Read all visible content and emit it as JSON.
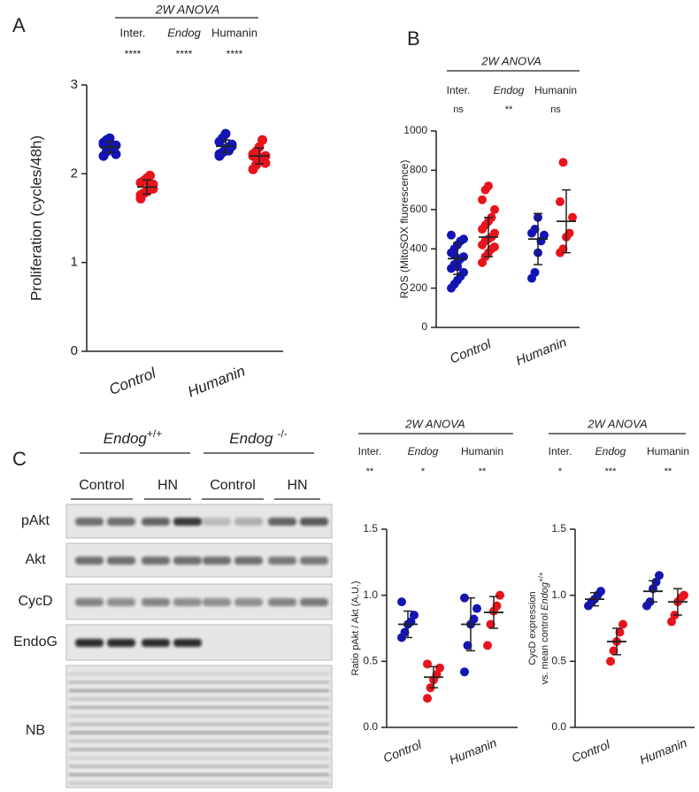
{
  "chart_data": [
    {
      "type": "dot",
      "panel_label": "A",
      "anova": {
        "title": "2W ANOVA",
        "terms": [
          "Inter.",
          "Endog",
          "Humanin"
        ],
        "significance": [
          "****",
          "****",
          "****"
        ]
      },
      "ylabel": "Proliferation (cycles/48h)",
      "categories": [
        "Control",
        "Humanin"
      ],
      "ylim": [
        0,
        3
      ],
      "yticks": [
        0,
        1,
        2,
        3
      ],
      "series": [
        {
          "color": "#1414b4",
          "points": [
            [
              2.2,
              2.25,
              2.28,
              2.3,
              2.32,
              2.35,
              2.38,
              2.4,
              2.27,
              2.22,
              2.33
            ],
            [
              2.2,
              2.24,
              2.28,
              2.3,
              2.33,
              2.36,
              2.4,
              2.45,
              2.26,
              2.31,
              2.22
            ]
          ],
          "mean": [
            2.3,
            2.31
          ],
          "sd": [
            0.06,
            0.07
          ]
        },
        {
          "color": "#e8141c",
          "points": [
            [
              1.72,
              1.78,
              1.8,
              1.85,
              1.88,
              1.9,
              1.92,
              1.95,
              1.98,
              1.83,
              1.76
            ],
            [
              2.05,
              2.1,
              2.15,
              2.18,
              2.2,
              2.22,
              2.25,
              2.3,
              2.38,
              2.12,
              2.2
            ]
          ],
          "mean": [
            1.85,
            2.2
          ],
          "sd": [
            0.08,
            0.09
          ]
        }
      ]
    },
    {
      "type": "dot",
      "panel_label": "B",
      "anova": {
        "title": "2W ANOVA",
        "terms": [
          "Inter.",
          "Endog",
          "Humanin"
        ],
        "significance": [
          "ns",
          "**",
          "ns"
        ]
      },
      "ylabel": "ROS (MitoSOX fluorescence)",
      "categories": [
        "Control",
        "Humanin"
      ],
      "ylim": [
        0,
        1000
      ],
      "yticks": [
        0,
        200,
        400,
        600,
        800,
        1000
      ],
      "series": [
        {
          "color": "#1414b4",
          "points": [
            [
              200,
              220,
              240,
              260,
              280,
              300,
              320,
              330,
              350,
              360,
              380,
              400,
              420,
              440,
              450,
              470,
              370,
              310
            ],
            [
              250,
              280,
              380,
              440,
              470,
              480,
              500,
              560
            ]
          ],
          "mean": [
            350,
            450
          ],
          "sd": [
            80,
            130
          ]
        },
        {
          "color": "#e8141c",
          "points": [
            [
              330,
              360,
              380,
              400,
              410,
              420,
              440,
              450,
              460,
              480,
              500,
              520,
              540,
              560,
              600,
              650,
              700,
              720
            ],
            [
              380,
              400,
              460,
              480,
              560,
              640,
              840
            ]
          ],
          "mean": [
            460,
            540
          ],
          "sd": [
            100,
            160
          ]
        }
      ]
    },
    {
      "type": "dot",
      "panel_label": "C",
      "anova": {
        "title": "2W ANOVA",
        "terms": [
          "Inter.",
          "Endog",
          "Humanin"
        ],
        "significance": [
          "**",
          "*",
          "**"
        ]
      },
      "ylabel": "Ratio pAkt / Akt (A.U.)",
      "categories": [
        "Control",
        "Humanin"
      ],
      "ylim": [
        0,
        1.5
      ],
      "yticks": [
        {
          "value": 0,
          "label": "0.0"
        },
        0.5,
        {
          "value": 1,
          "label": "1.0"
        },
        1.5
      ],
      "series": [
        {
          "color": "#1414b4",
          "points": [
            [
              0.68,
              0.72,
              0.78,
              0.8,
              0.85,
              0.95
            ],
            [
              0.42,
              0.62,
              0.78,
              0.82,
              0.9,
              0.98
            ]
          ],
          "mean": [
            0.78,
            0.78
          ],
          "sd": [
            0.1,
            0.2
          ]
        },
        {
          "color": "#e8141c",
          "points": [
            [
              0.22,
              0.3,
              0.36,
              0.4,
              0.45,
              0.48
            ],
            [
              0.62,
              0.78,
              0.88,
              0.92,
              1.0
            ]
          ],
          "mean": [
            0.38,
            0.87
          ],
          "sd": [
            0.08,
            0.12
          ]
        }
      ]
    },
    {
      "type": "dot",
      "anova": {
        "title": "2W ANOVA",
        "terms": [
          "Inter.",
          "Endog",
          "Humanin"
        ],
        "significance": [
          "*",
          "***",
          "**"
        ]
      },
      "ylabel": {
        "line1": "CycD expression",
        "line2": "vs. mean control",
        "gene": "Endog",
        "superscript": "+/+"
      },
      "categories": [
        "Control",
        "Humanin"
      ],
      "ylim": [
        0,
        1.5
      ],
      "yticks": [
        {
          "value": 0,
          "label": "0.0"
        },
        0.5,
        {
          "value": 1,
          "label": "1.0"
        },
        1.5
      ],
      "series": [
        {
          "color": "#1414b4",
          "points": [
            [
              0.92,
              0.95,
              0.97,
              1.0,
              1.03
            ],
            [
              0.92,
              0.95,
              1.05,
              1.1,
              1.15
            ]
          ],
          "mean": [
            0.97,
            1.03
          ],
          "sd": [
            0.05,
            0.08
          ]
        },
        {
          "color": "#e8141c",
          "points": [
            [
              0.5,
              0.58,
              0.65,
              0.72,
              0.78
            ],
            [
              0.8,
              0.85,
              0.95,
              0.98,
              1.0
            ]
          ],
          "mean": [
            0.65,
            0.95
          ],
          "sd": [
            0.1,
            0.1
          ]
        }
      ]
    }
  ],
  "blot": {
    "genotypes": [
      {
        "gene": "Endog",
        "superscript": "+/+"
      },
      {
        "gene": "Endog",
        "superscript": "-/-"
      }
    ],
    "treatments": [
      "Control",
      "HN",
      "Control",
      "HN"
    ],
    "rows": [
      "pAkt",
      "Akt",
      "CycD",
      "EndoG",
      "NB"
    ]
  }
}
